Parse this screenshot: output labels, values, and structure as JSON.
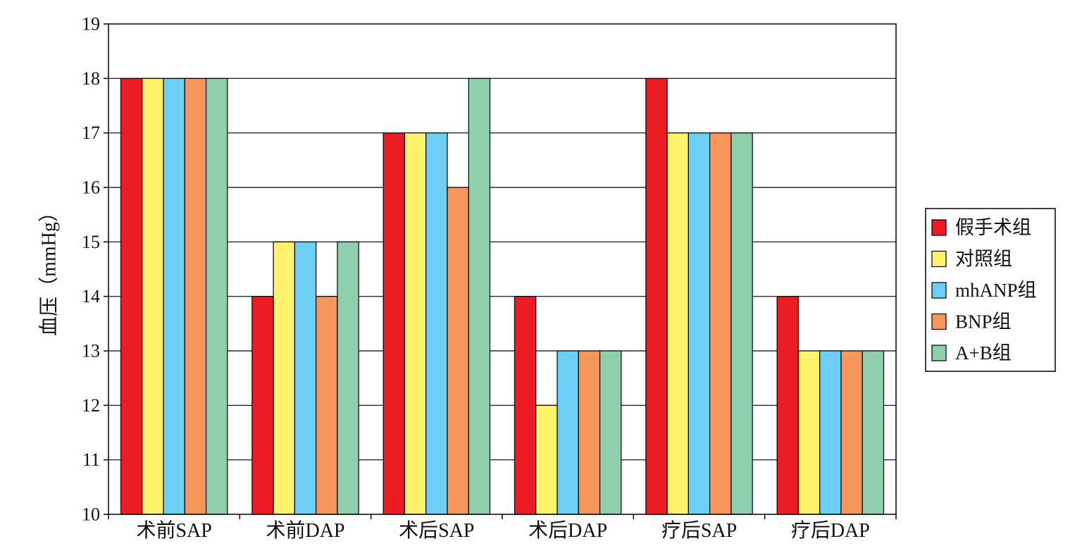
{
  "chart_data": {
    "type": "bar",
    "ylabel": "血压（mmHg）",
    "ylim": [
      10,
      19
    ],
    "yticks": [
      10,
      11,
      12,
      13,
      14,
      15,
      16,
      17,
      18,
      19
    ],
    "grid": true,
    "legend_position": "right",
    "categories": [
      "术前SAP",
      "术前DAP",
      "术后SAP",
      "术后DAP",
      "疗后SAP",
      "疗后DAP"
    ],
    "series": [
      {
        "name": "假手术组",
        "color": "#ec1c24",
        "values": [
          18,
          14,
          17,
          14,
          18,
          14
        ]
      },
      {
        "name": "对照组",
        "color": "#fff36b",
        "values": [
          18,
          15,
          17,
          12,
          17,
          13
        ]
      },
      {
        "name": "mhANP组",
        "color": "#6dcff6",
        "values": [
          18,
          15,
          17,
          13,
          17,
          13
        ]
      },
      {
        "name": "BNP组",
        "color": "#f7965a",
        "values": [
          18,
          14,
          16,
          13,
          17,
          13
        ]
      },
      {
        "name": "A+B组",
        "color": "#8fcfad",
        "values": [
          18,
          15,
          18,
          13,
          17,
          13
        ]
      }
    ]
  }
}
